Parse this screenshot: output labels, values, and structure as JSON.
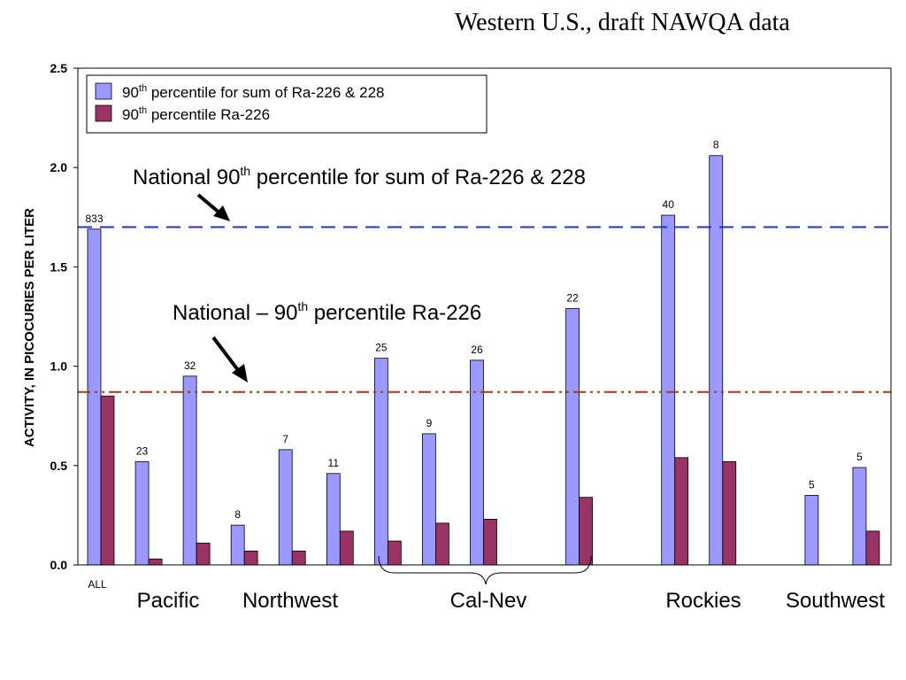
{
  "title": "Western U.S., draft NAWQA data",
  "colors": {
    "series1": "#9999ff",
    "series2": "#993366",
    "national_sum_line": "#1f2fd0",
    "national_ra226_line": "#a0391a"
  },
  "chart_data": {
    "type": "bar",
    "ylabel": "ACTIVITY, IN PICOCURIES PER LITER",
    "ylim": [
      0,
      2.5
    ],
    "yticks": [
      "0.0",
      "0.5",
      "1.0",
      "1.5",
      "2.0",
      "2.5"
    ],
    "grid": false,
    "legend_position": "top-left",
    "series": [
      {
        "name": "percentile for sum of Ra-226 & 228"
      },
      {
        "name": "percentile Ra-226"
      }
    ],
    "legend": [
      {
        "pre": "90",
        "sup": "th",
        "post": " percentile for sum of Ra-226 & 228"
      },
      {
        "pre": "90",
        "sup": "th",
        "post": " percentile Ra-226"
      }
    ],
    "bars": [
      {
        "sum": 1.69,
        "ra226": 0.85,
        "count": "833"
      },
      {
        "sum": 0.52,
        "ra226": 0.03,
        "count": "23"
      },
      {
        "sum": 0.95,
        "ra226": 0.11,
        "count": "32"
      },
      {
        "sum": 0.2,
        "ra226": 0.07,
        "count": "8"
      },
      {
        "sum": 0.58,
        "ra226": 0.07,
        "count": "7"
      },
      {
        "sum": 0.46,
        "ra226": 0.17,
        "count": "11"
      },
      {
        "sum": 1.04,
        "ra226": 0.12,
        "count": "25"
      },
      {
        "sum": 0.66,
        "ra226": 0.21,
        "count": "9"
      },
      {
        "sum": 1.03,
        "ra226": 0.23,
        "count": "26"
      },
      {
        "sum": null,
        "ra226": null,
        "count": ""
      },
      {
        "sum": 1.29,
        "ra226": 0.34,
        "count": "22"
      },
      {
        "sum": null,
        "ra226": null,
        "count": ""
      },
      {
        "sum": 1.76,
        "ra226": 0.54,
        "count": "40"
      },
      {
        "sum": 2.06,
        "ra226": 0.52,
        "count": "8"
      },
      {
        "sum": null,
        "ra226": null,
        "count": ""
      },
      {
        "sum": 0.35,
        "ra226": null,
        "count": "5"
      },
      {
        "sum": 0.49,
        "ra226": 0.17,
        "count": "5"
      }
    ],
    "reference_lines": [
      {
        "value": 1.7,
        "style": "dashed"
      },
      {
        "value": 0.87,
        "style": "dash-dot-dot"
      }
    ],
    "annotations": [
      {
        "pre": "National 90",
        "sup": "th",
        "post": " percentile for sum of Ra-226 & 228"
      },
      {
        "pre": "National – 90",
        "sup": "th",
        "post": " percentile Ra-226"
      }
    ],
    "all_label": "ALL",
    "groups": [
      "Pacific",
      "Northwest",
      "Cal-Nev",
      "Rockies",
      "Southwest"
    ]
  }
}
